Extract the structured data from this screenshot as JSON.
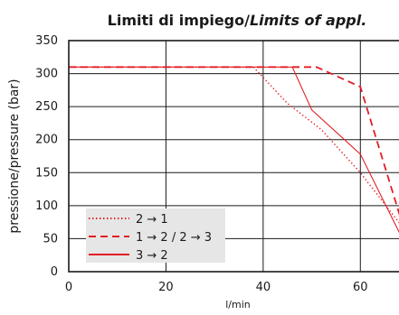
{
  "chart_data": {
    "type": "line",
    "title_main": "Limiti di impiego/",
    "title_italic": "Limits of appl.",
    "xlabel": "l/min",
    "ylabel": "pressione/pressure (bar)",
    "xlim": [
      0,
      70
    ],
    "ylim": [
      0,
      350
    ],
    "xticks": [
      0,
      20,
      40,
      60
    ],
    "yticks": [
      0,
      50,
      100,
      150,
      200,
      250,
      300,
      350
    ],
    "grid": true,
    "legend_position": "lower-left",
    "series": [
      {
        "name": "2 → 1",
        "style": "dotted",
        "color": "#e31e24",
        "x": [
          0,
          38,
          45,
          52,
          60,
          70
        ],
        "y": [
          310,
          310,
          255,
          215,
          150,
          55
        ]
      },
      {
        "name": "1 → 2 / 2 → 3",
        "style": "dashed",
        "color": "#e31e24",
        "x": [
          0,
          51,
          60,
          70
        ],
        "y": [
          310,
          310,
          280,
          40
        ]
      },
      {
        "name": "3 → 2",
        "style": "solid",
        "color": "#e31e24",
        "x": [
          0,
          46,
          50,
          60,
          70
        ],
        "y": [
          310,
          310,
          245,
          178,
          30
        ]
      }
    ]
  }
}
